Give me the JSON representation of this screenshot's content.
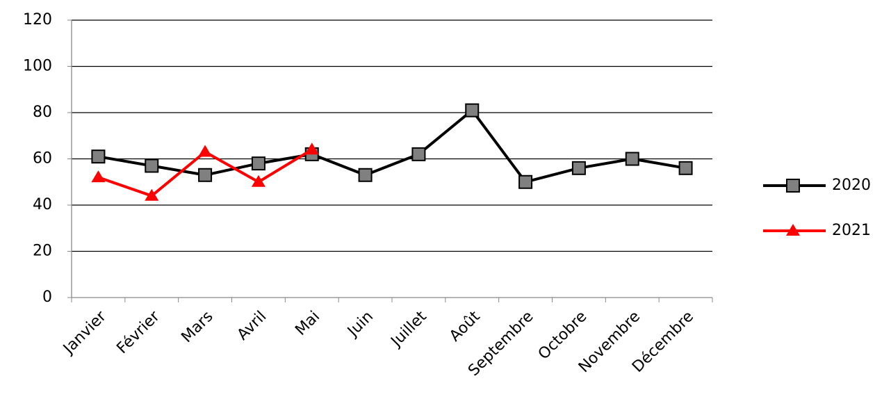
{
  "chart_data": {
    "type": "line",
    "categories": [
      "Janvier",
      "Février",
      "Mars",
      "Avril",
      "Mai",
      "Juin",
      "Juillet",
      "Août",
      "Septembre",
      "Octobre",
      "Novembre",
      "Décembre"
    ],
    "series": [
      {
        "name": "2020",
        "color": "#000000",
        "marker": "square",
        "values": [
          61,
          57,
          53,
          58,
          62,
          53,
          62,
          81,
          50,
          56,
          60,
          56
        ]
      },
      {
        "name": "2021",
        "color": "#ff0000",
        "marker": "triangle",
        "values": [
          52,
          44,
          63,
          50,
          64,
          null,
          null,
          null,
          null,
          null,
          null,
          null
        ]
      }
    ],
    "ylim": [
      0,
      120
    ],
    "yticks": [
      0,
      20,
      40,
      60,
      80,
      100,
      120
    ],
    "grid": true,
    "legend": "right"
  }
}
